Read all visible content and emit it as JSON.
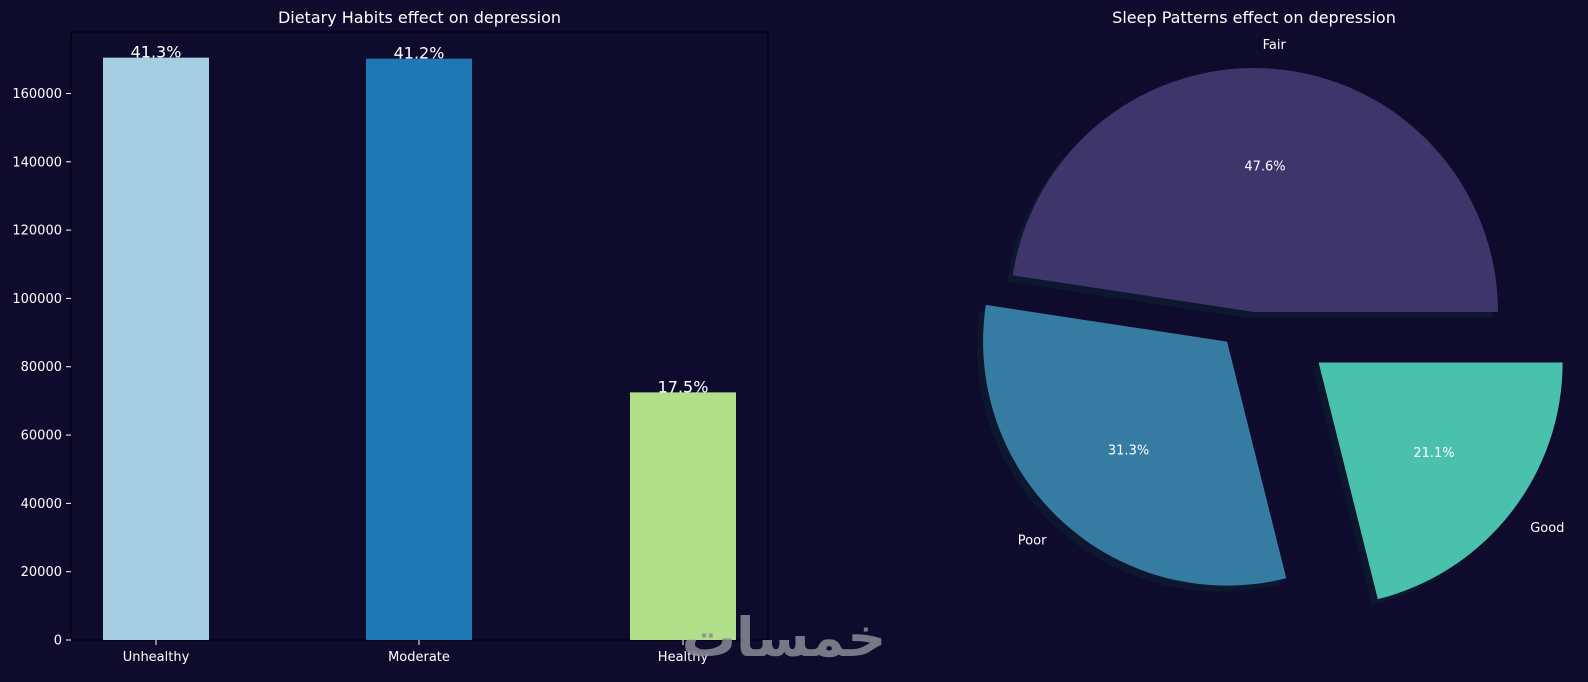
{
  "chart_data": [
    {
      "type": "bar",
      "title": "Dietary Habits effect on depression",
      "categories": [
        "Unhealthy",
        "Moderate",
        "Healthy"
      ],
      "values": [
        170500,
        170200,
        72500
      ],
      "bar_labels": [
        "41.3%",
        "41.2%",
        "17.5%"
      ],
      "colors": [
        "#a6cee3",
        "#1f78b4",
        "#b2df8a"
      ],
      "ylim": [
        0,
        178000
      ],
      "yticks": [
        0,
        20000,
        40000,
        60000,
        80000,
        100000,
        120000,
        140000,
        160000
      ],
      "ytick_labels": [
        "0",
        "20000",
        "40000",
        "60000",
        "80000",
        "100000",
        "120000",
        "140000",
        "160000"
      ],
      "xlabel": "",
      "ylabel": "",
      "grid": false
    },
    {
      "type": "pie",
      "title": "Sleep Patterns effect on depression",
      "labels": [
        "Fair",
        "Poor",
        "Good"
      ],
      "values": [
        47.6,
        31.3,
        21.1
      ],
      "pct_labels": [
        "47.6%",
        "31.3%",
        "21.1%"
      ],
      "colors": [
        "#3e356b",
        "#357ba2",
        "#49c1ad"
      ],
      "shadow": true,
      "exploded": true
    }
  ],
  "watermark": {
    "text": "خمسات"
  }
}
